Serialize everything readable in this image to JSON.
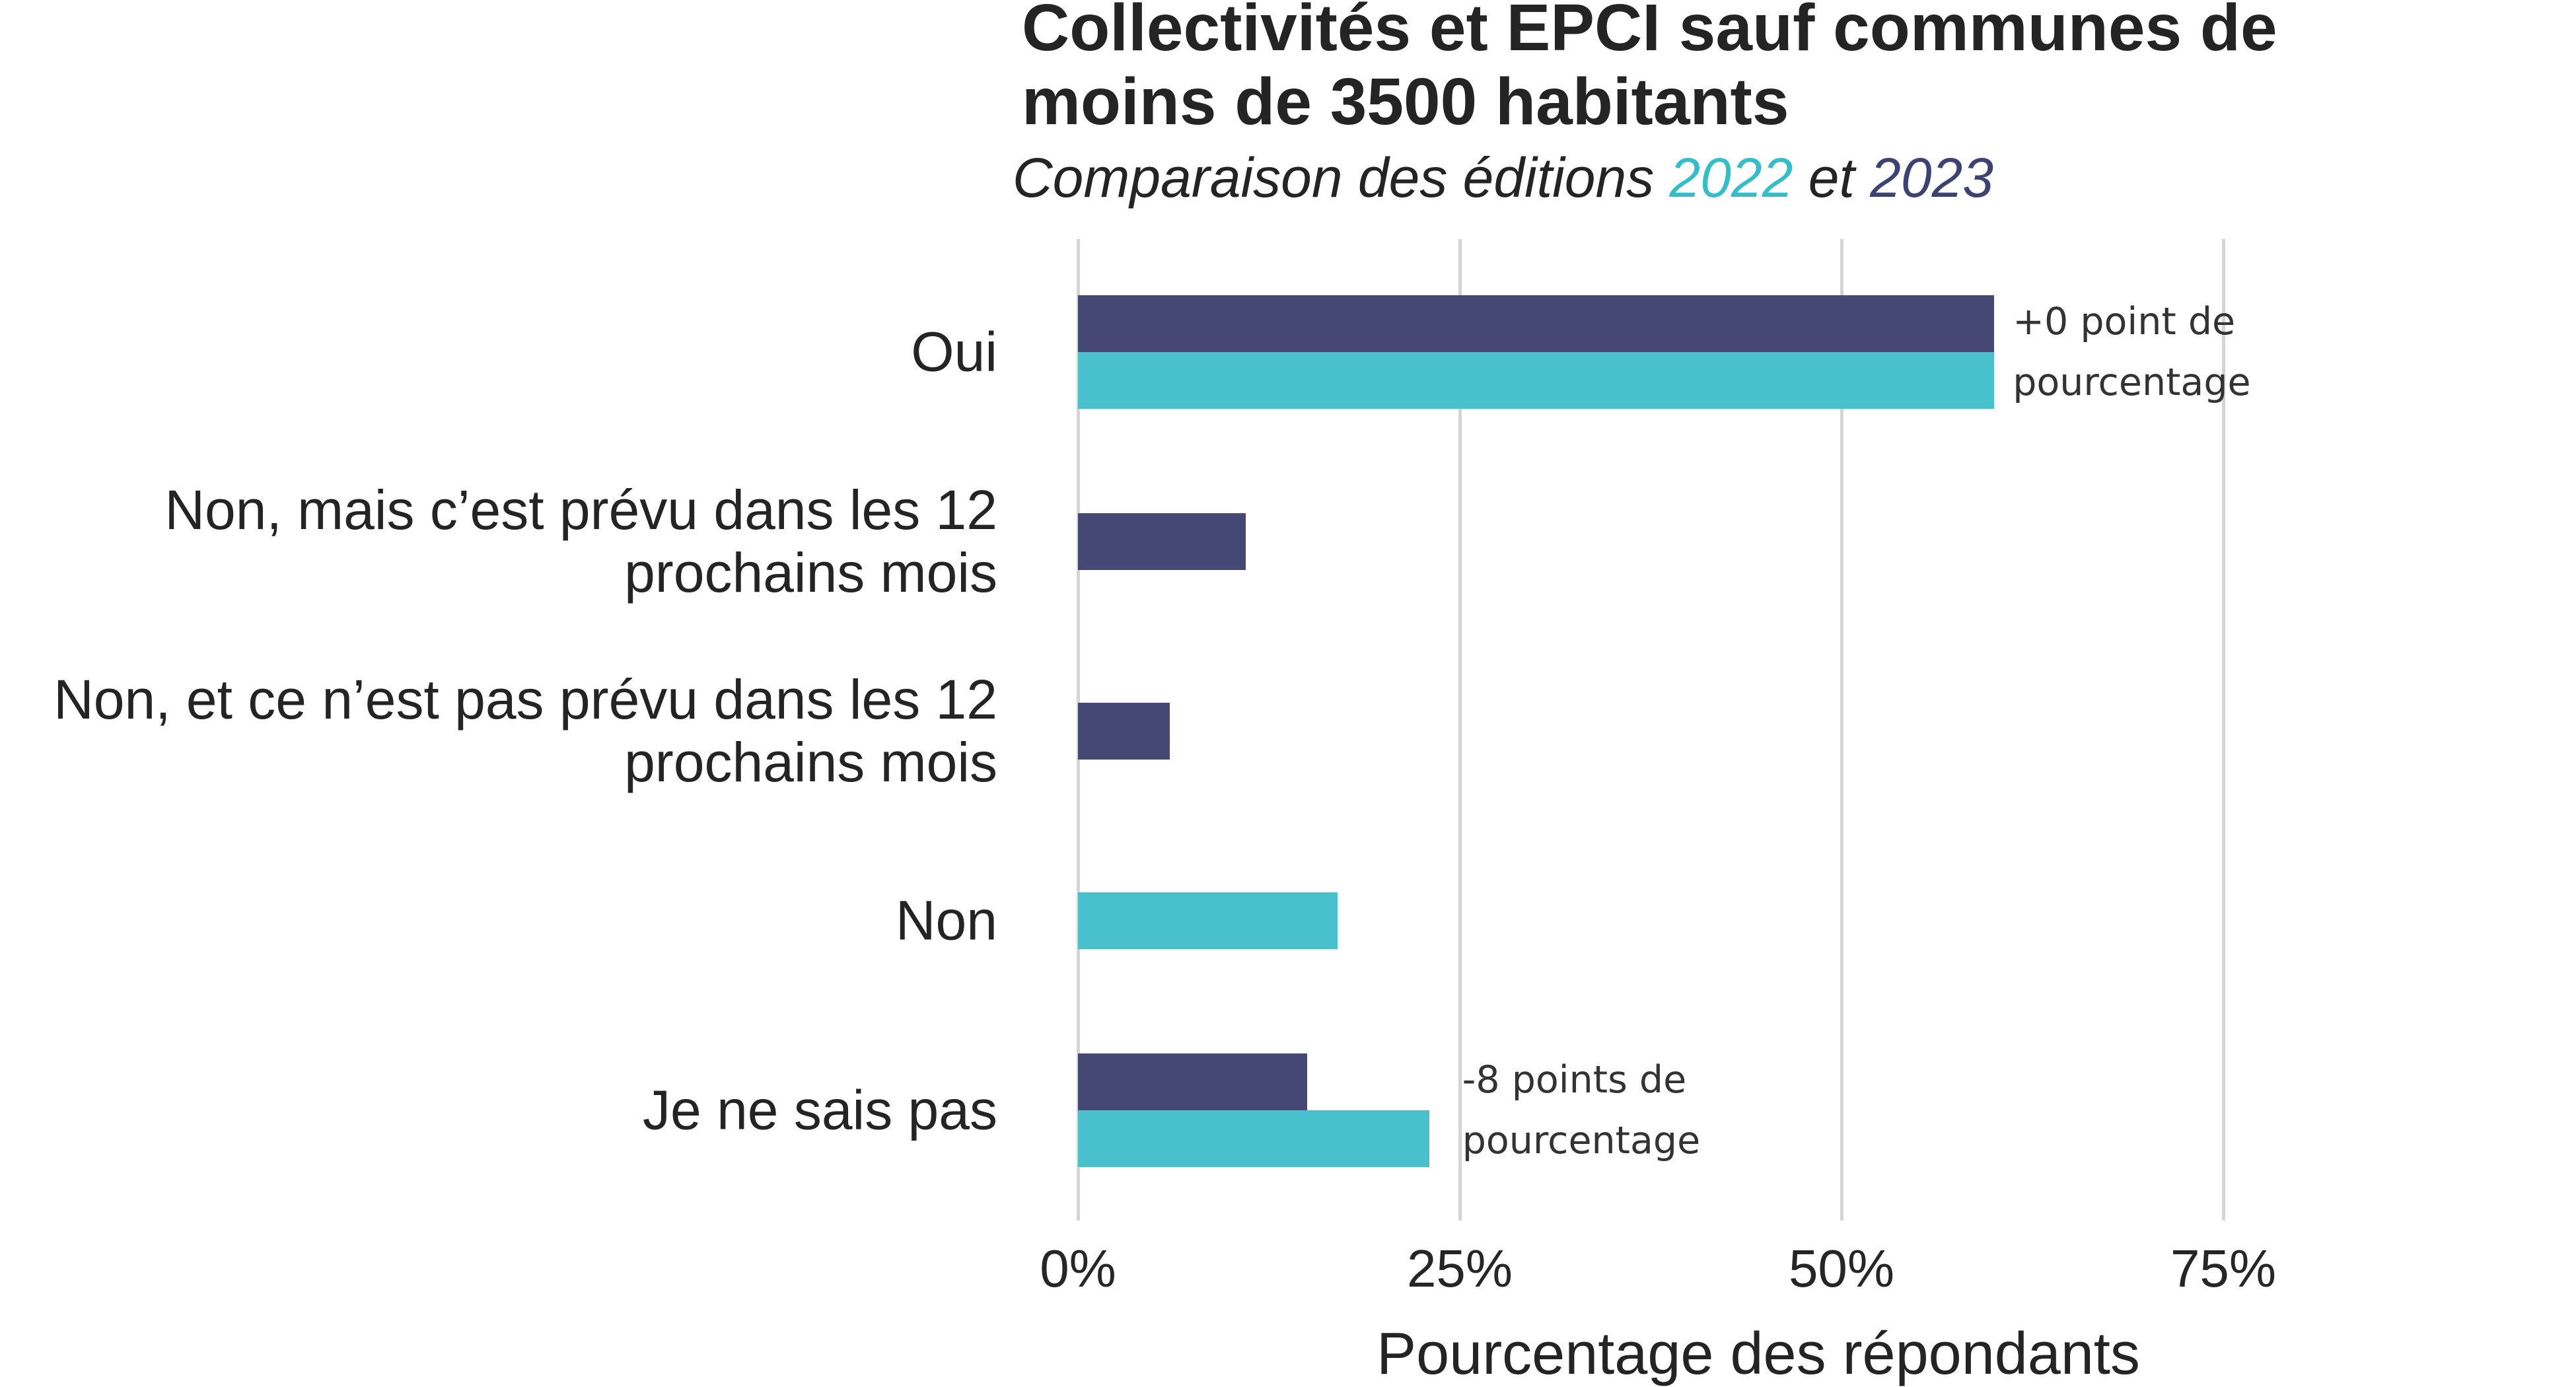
{
  "header": {
    "title": "Collectivités et EPCI sauf communes de\nmoins de 3500 habitants",
    "subtitle_prefix": "Comparaison des éditions ",
    "subtitle_year_2022": "2022",
    "subtitle_connector": " et ",
    "subtitle_year_2023": "2023"
  },
  "colors": {
    "bar_2023_navy": "#454873",
    "bar_2022_teal": "#49c1cd",
    "subtitle_2022_text": "#35bec9",
    "subtitle_2023_text": "#3d4272",
    "gridline": "#d5d5d5",
    "title_text": "#242424",
    "annotation_text": "#333333"
  },
  "chart_data": {
    "type": "bar",
    "orientation": "horizontal",
    "unit": "percent of respondents",
    "title": "Collectivités et EPCI sauf communes de moins de 3500 habitants",
    "subtitle": "Comparaison des éditions 2022 et 2023",
    "xlabel": "Pourcentage des répondants",
    "x_ticks": [
      "0%",
      "25%",
      "50%",
      "75%"
    ],
    "x_tick_values": [
      0,
      25,
      50,
      75
    ],
    "xlim": [
      0,
      80
    ],
    "grid": "vertical major gridlines only",
    "legend": "none (series identified by colored years in subtitle)",
    "categories": [
      "Oui",
      "Non, mais c’est prévu dans les 12\nprochains mois",
      "Non, et ce n’est pas prévu dans les 12\nprochains mois",
      "Non",
      "Je ne sais pas"
    ],
    "series": [
      {
        "name": "2023",
        "color": "#454873",
        "values": [
          60,
          11,
          6,
          null,
          15
        ]
      },
      {
        "name": "2022",
        "color": "#49c1cd",
        "values": [
          60,
          null,
          null,
          17,
          23
        ]
      }
    ],
    "annotations": [
      {
        "row": 0,
        "text": "+0 point de\npourcentage"
      },
      {
        "row": 4,
        "text": "-8 points de\npourcentage"
      }
    ]
  }
}
